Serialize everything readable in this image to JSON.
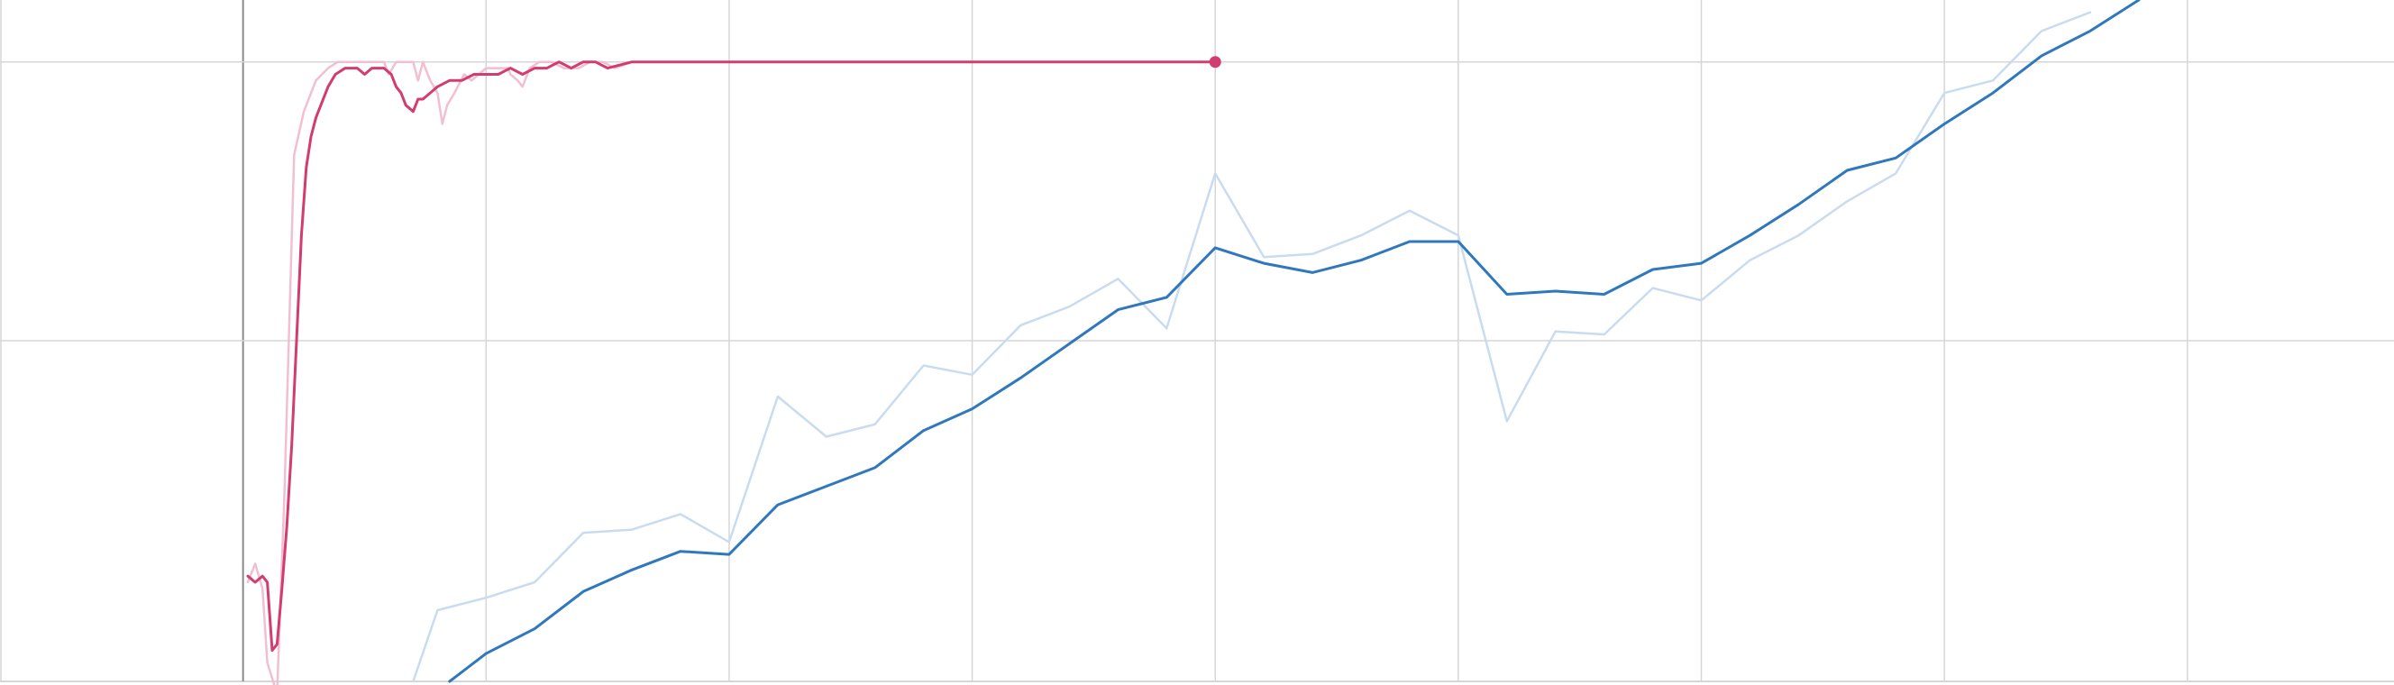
{
  "chart_data": {
    "type": "line",
    "title": "",
    "xlabel": "",
    "ylabel": "",
    "grid": true,
    "legend": "none",
    "x_range": [
      -1,
      8.85
    ],
    "y_range": [
      0,
      1.1
    ],
    "x_gridlines": [
      0,
      1,
      2,
      3,
      4,
      5,
      6,
      7,
      8
    ],
    "y_gridlines": [
      0.55,
      1
    ],
    "colors": {
      "pink": "#d23c6e",
      "pink_light": "#f2bfd2",
      "blue": "#2f78bd",
      "blue_light": "#c9dcef",
      "grid": "#d6d6d6",
      "axis": "#8a8a8a"
    },
    "series": [
      {
        "style": "pink_light",
        "points": [
          [
            0.02,
            0.16
          ],
          [
            0.05,
            0.19
          ],
          [
            0.08,
            0.15
          ],
          [
            0.1,
            0.03
          ],
          [
            0.14,
            -0.02
          ],
          [
            0.17,
            0.3
          ],
          [
            0.21,
            0.85
          ],
          [
            0.25,
            0.92
          ],
          [
            0.3,
            0.97
          ],
          [
            0.35,
            0.99
          ],
          [
            0.39,
            1.0
          ],
          [
            0.43,
            1.0
          ],
          [
            0.48,
            1.0
          ],
          [
            0.53,
            1.0
          ],
          [
            0.58,
            1.0
          ],
          [
            0.6,
            0.98
          ],
          [
            0.63,
            1.0
          ],
          [
            0.66,
            1.0
          ],
          [
            0.7,
            1.0
          ],
          [
            0.72,
            0.97
          ],
          [
            0.74,
            1.0
          ],
          [
            0.77,
            0.97
          ],
          [
            0.8,
            0.95
          ],
          [
            0.82,
            0.9
          ],
          [
            0.84,
            0.93
          ],
          [
            0.87,
            0.95
          ],
          [
            0.91,
            0.98
          ],
          [
            0.94,
            0.97
          ],
          [
            0.97,
            0.98
          ],
          [
            1.0,
            0.99
          ],
          [
            1.05,
            0.99
          ],
          [
            1.09,
            0.99
          ],
          [
            1.1,
            0.98
          ],
          [
            1.13,
            0.97
          ],
          [
            1.15,
            0.96
          ],
          [
            1.18,
            0.99
          ],
          [
            1.22,
            1.0
          ],
          [
            1.27,
            1.0
          ],
          [
            1.32,
            0.99
          ],
          [
            1.38,
            0.99
          ],
          [
            1.43,
            1.0
          ],
          [
            1.48,
            1.0
          ],
          [
            1.53,
            0.99
          ],
          [
            1.6,
            1.0
          ],
          [
            1.7,
            1.0
          ],
          [
            1.8,
            1.0
          ],
          [
            1.9,
            1.0
          ],
          [
            2.0,
            1.0
          ],
          [
            2.1,
            1.0
          ],
          [
            2.2,
            1.0
          ],
          [
            2.3,
            1.0
          ],
          [
            2.4,
            1.0
          ],
          [
            2.5,
            1.0
          ],
          [
            2.6,
            1.0
          ],
          [
            2.7,
            1.0
          ],
          [
            2.8,
            1.0
          ],
          [
            2.9,
            1.0
          ],
          [
            3.0,
            1.0
          ],
          [
            3.1,
            1.0
          ],
          [
            3.2,
            1.0
          ],
          [
            3.3,
            1.0
          ],
          [
            3.4,
            1.0
          ],
          [
            3.5,
            1.0
          ],
          [
            3.6,
            1.0
          ],
          [
            3.7,
            1.0
          ],
          [
            3.8,
            1.0
          ],
          [
            3.9,
            1.0
          ],
          [
            4.0,
            1.0
          ]
        ]
      },
      {
        "style": "pink",
        "points": [
          [
            0.02,
            0.17
          ],
          [
            0.05,
            0.16
          ],
          [
            0.08,
            0.17
          ],
          [
            0.1,
            0.16
          ],
          [
            0.12,
            0.05
          ],
          [
            0.14,
            0.06
          ],
          [
            0.16,
            0.15
          ],
          [
            0.18,
            0.25
          ],
          [
            0.2,
            0.38
          ],
          [
            0.22,
            0.55
          ],
          [
            0.24,
            0.72
          ],
          [
            0.26,
            0.83
          ],
          [
            0.28,
            0.88
          ],
          [
            0.3,
            0.91
          ],
          [
            0.32,
            0.93
          ],
          [
            0.35,
            0.96
          ],
          [
            0.38,
            0.98
          ],
          [
            0.42,
            0.99
          ],
          [
            0.45,
            0.99
          ],
          [
            0.47,
            0.99
          ],
          [
            0.5,
            0.98
          ],
          [
            0.53,
            0.99
          ],
          [
            0.55,
            0.99
          ],
          [
            0.58,
            0.99
          ],
          [
            0.61,
            0.98
          ],
          [
            0.63,
            0.96
          ],
          [
            0.65,
            0.95
          ],
          [
            0.67,
            0.93
          ],
          [
            0.7,
            0.92
          ],
          [
            0.72,
            0.94
          ],
          [
            0.74,
            0.94
          ],
          [
            0.77,
            0.95
          ],
          [
            0.8,
            0.96
          ],
          [
            0.85,
            0.97
          ],
          [
            0.9,
            0.97
          ],
          [
            0.95,
            0.98
          ],
          [
            1.0,
            0.98
          ],
          [
            1.05,
            0.98
          ],
          [
            1.1,
            0.99
          ],
          [
            1.15,
            0.98
          ],
          [
            1.2,
            0.99
          ],
          [
            1.25,
            0.99
          ],
          [
            1.3,
            1.0
          ],
          [
            1.35,
            0.99
          ],
          [
            1.4,
            1.0
          ],
          [
            1.45,
            1.0
          ],
          [
            1.5,
            0.99
          ],
          [
            1.6,
            1.0
          ],
          [
            1.7,
            1.0
          ],
          [
            1.8,
            1.0
          ],
          [
            1.9,
            1.0
          ],
          [
            2.0,
            1.0
          ],
          [
            2.1,
            1.0
          ],
          [
            2.2,
            1.0
          ],
          [
            2.3,
            1.0
          ],
          [
            2.4,
            1.0
          ],
          [
            2.5,
            1.0
          ],
          [
            2.6,
            1.0
          ],
          [
            2.7,
            1.0
          ],
          [
            2.8,
            1.0
          ],
          [
            2.9,
            1.0
          ],
          [
            3.0,
            1.0
          ],
          [
            3.1,
            1.0
          ],
          [
            3.2,
            1.0
          ],
          [
            3.3,
            1.0
          ],
          [
            3.4,
            1.0
          ],
          [
            3.5,
            1.0
          ],
          [
            3.6,
            1.0
          ],
          [
            3.7,
            1.0
          ],
          [
            3.8,
            1.0
          ],
          [
            3.9,
            1.0
          ],
          [
            4.0,
            1.0
          ]
        ]
      },
      {
        "style": "blue_light",
        "points": [
          [
            0.7,
            0.0
          ],
          [
            0.8,
            0.115
          ],
          [
            1.0,
            0.135
          ],
          [
            1.2,
            0.16
          ],
          [
            1.4,
            0.24
          ],
          [
            1.6,
            0.245
          ],
          [
            1.8,
            0.27
          ],
          [
            2.0,
            0.225
          ],
          [
            2.2,
            0.46
          ],
          [
            2.4,
            0.395
          ],
          [
            2.6,
            0.415
          ],
          [
            2.8,
            0.51
          ],
          [
            3.0,
            0.495
          ],
          [
            3.2,
            0.575
          ],
          [
            3.4,
            0.605
          ],
          [
            3.6,
            0.65
          ],
          [
            3.8,
            0.57
          ],
          [
            4.0,
            0.82
          ],
          [
            4.2,
            0.685
          ],
          [
            4.4,
            0.69
          ],
          [
            4.6,
            0.72
          ],
          [
            4.8,
            0.76
          ],
          [
            5.0,
            0.72
          ],
          [
            5.2,
            0.42
          ],
          [
            5.4,
            0.565
          ],
          [
            5.6,
            0.56
          ],
          [
            5.8,
            0.635
          ],
          [
            6.0,
            0.615
          ],
          [
            6.2,
            0.68
          ],
          [
            6.4,
            0.72
          ],
          [
            6.6,
            0.775
          ],
          [
            6.8,
            0.82
          ],
          [
            7.0,
            0.95
          ],
          [
            7.2,
            0.97
          ],
          [
            7.4,
            1.05
          ],
          [
            7.6,
            1.08
          ]
        ]
      },
      {
        "style": "blue",
        "points": [
          [
            0.85,
            0.0
          ],
          [
            1.0,
            0.045
          ],
          [
            1.2,
            0.085
          ],
          [
            1.4,
            0.145
          ],
          [
            1.6,
            0.18
          ],
          [
            1.8,
            0.21
          ],
          [
            2.0,
            0.205
          ],
          [
            2.2,
            0.285
          ],
          [
            2.4,
            0.315
          ],
          [
            2.6,
            0.345
          ],
          [
            2.8,
            0.405
          ],
          [
            3.0,
            0.44
          ],
          [
            3.2,
            0.49
          ],
          [
            3.4,
            0.545
          ],
          [
            3.6,
            0.6
          ],
          [
            3.8,
            0.62
          ],
          [
            4.0,
            0.7
          ],
          [
            4.2,
            0.675
          ],
          [
            4.4,
            0.66
          ],
          [
            4.6,
            0.68
          ],
          [
            4.8,
            0.71
          ],
          [
            5.0,
            0.71
          ],
          [
            5.2,
            0.625
          ],
          [
            5.4,
            0.63
          ],
          [
            5.6,
            0.625
          ],
          [
            5.8,
            0.665
          ],
          [
            6.0,
            0.675
          ],
          [
            6.2,
            0.72
          ],
          [
            6.4,
            0.77
          ],
          [
            6.6,
            0.825
          ],
          [
            6.8,
            0.845
          ],
          [
            7.0,
            0.9
          ],
          [
            7.2,
            0.95
          ],
          [
            7.4,
            1.01
          ],
          [
            7.6,
            1.05
          ],
          [
            7.8,
            1.1
          ]
        ]
      }
    ],
    "markers": [
      {
        "style": "pink",
        "x": 4.0,
        "y": 1.0
      }
    ]
  }
}
